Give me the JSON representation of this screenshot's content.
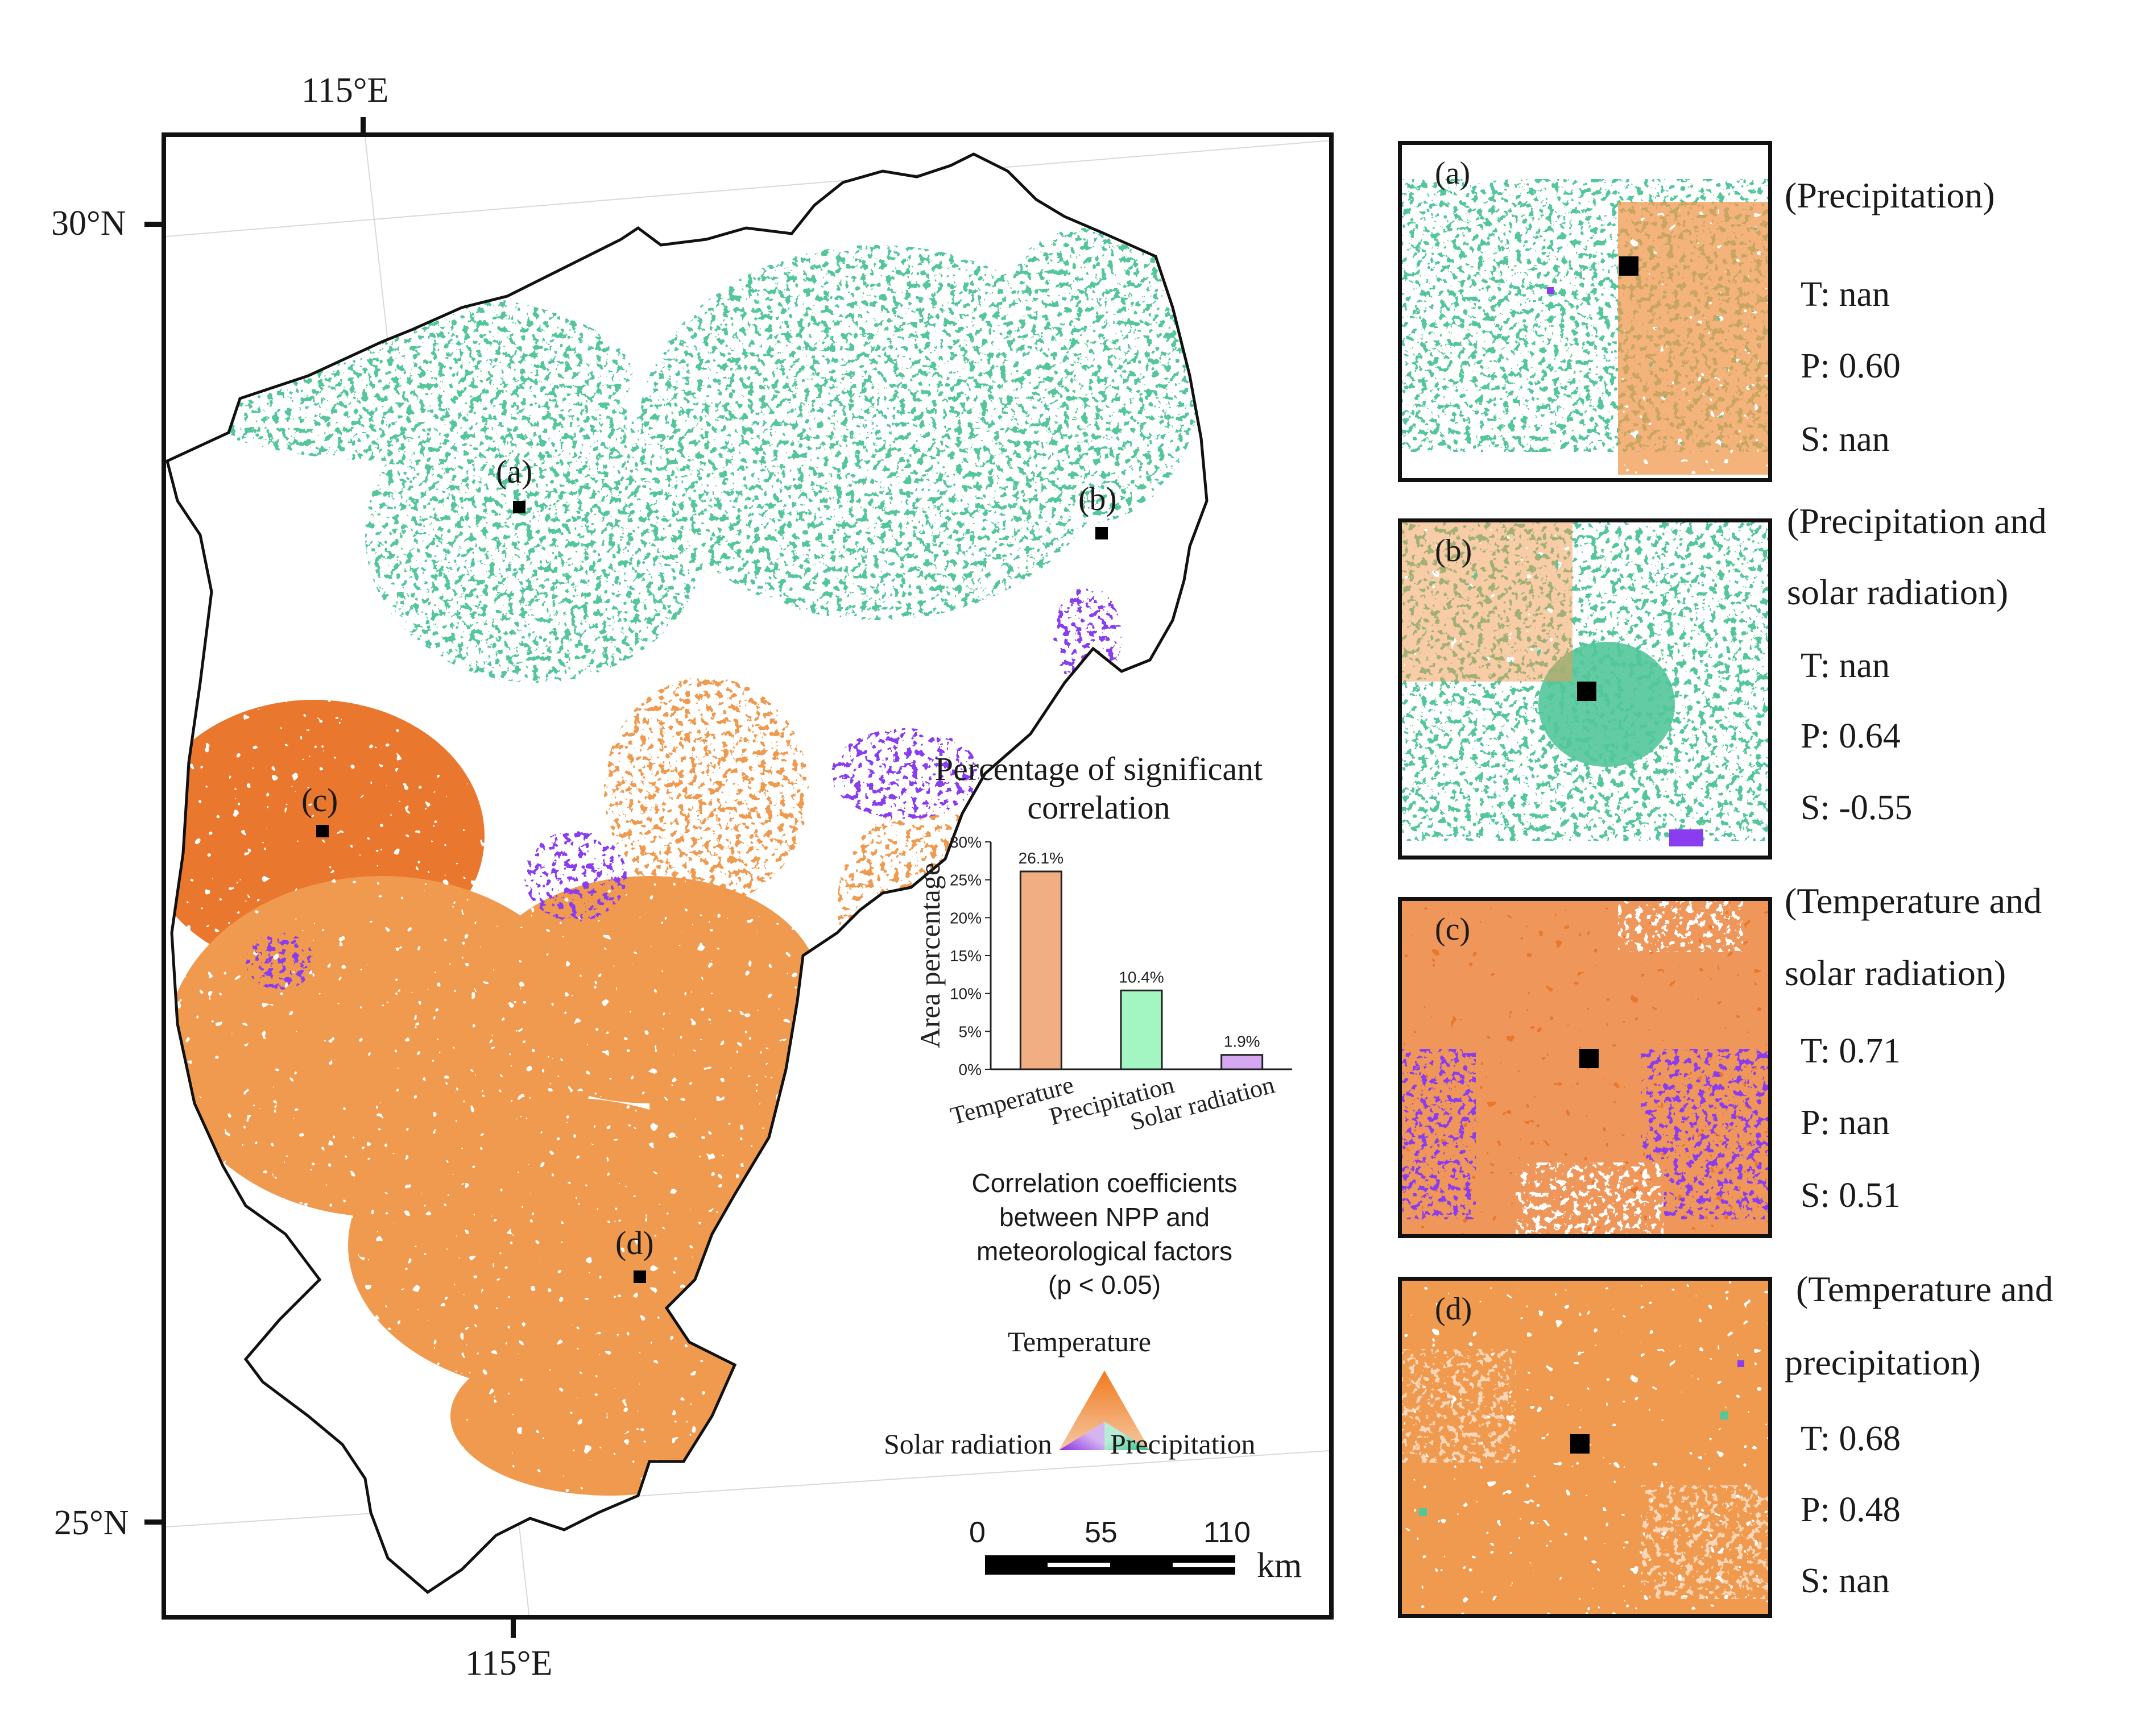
{
  "colors": {
    "temperature": "#f09a4f",
    "temperature_strong": "#e9782e",
    "precipitation": "#52c79a",
    "solar_radiation": "#8a3cf0",
    "boundary": "#111111"
  },
  "map": {
    "axis_labels": {
      "top_lon": "115°E",
      "bottom_lon": "115°E",
      "north_lat": "30°N",
      "south_lat": "25°N"
    },
    "sites": [
      {
        "id": "a",
        "label": "(a)"
      },
      {
        "id": "b",
        "label": "(b)"
      },
      {
        "id": "c",
        "label": "(c)"
      },
      {
        "id": "d",
        "label": "(d)"
      }
    ],
    "legend": {
      "title_lines": [
        "Correlation coefficients",
        "between NPP and",
        "meteorological factors",
        "(p < 0.05)"
      ],
      "triangle_top": "Temperature",
      "triangle_left": "Solar radiation",
      "triangle_right": "Precipitation"
    },
    "scale_bar": {
      "ticks": [
        "0",
        "55",
        "110"
      ],
      "unit": "km"
    }
  },
  "chart_data": {
    "type": "bar",
    "title": "Percentage of significant correlation",
    "title_lines": [
      "Percentage of significant",
      "correlation"
    ],
    "categories": [
      "Temperature",
      "Precipitation",
      "Solar radiation"
    ],
    "values": [
      26.1,
      10.4,
      1.9
    ],
    "value_labels": [
      "26.1%",
      "10.4%",
      "1.9%"
    ],
    "bar_colors": [
      "#f0ae82",
      "#a3f5c1",
      "#d6a8f2"
    ],
    "ylabel": "Area percentage",
    "yticks": [
      "0%",
      "5%",
      "10%",
      "15%",
      "20%",
      "25%",
      "30%"
    ],
    "ylim": [
      0,
      30
    ]
  },
  "insets": [
    {
      "id": "a",
      "label": "(a)",
      "description_lines": [
        "(Precipitation)"
      ],
      "t": "T: nan",
      "p": "P: 0.60",
      "s": "S: nan",
      "dominant": "precipitation"
    },
    {
      "id": "b",
      "label": "(b)",
      "description_lines": [
        "(Precipitation and",
        "solar radiation)"
      ],
      "t": "T: nan",
      "p": "P: 0.64",
      "s": "S: -0.55",
      "dominant": "precipitation"
    },
    {
      "id": "c",
      "label": "(c)",
      "description_lines": [
        "(Temperature and",
        "solar radiation)"
      ],
      "t": "T: 0.71",
      "p": "P: nan",
      "s": "S: 0.51",
      "dominant": "temperature"
    },
    {
      "id": "d",
      "label": "(d)",
      "description_lines": [
        "(Temperature and",
        "precipitation)"
      ],
      "t": "T: 0.68",
      "p": "P: 0.48",
      "s": "S: nan",
      "dominant": "temperature"
    }
  ]
}
